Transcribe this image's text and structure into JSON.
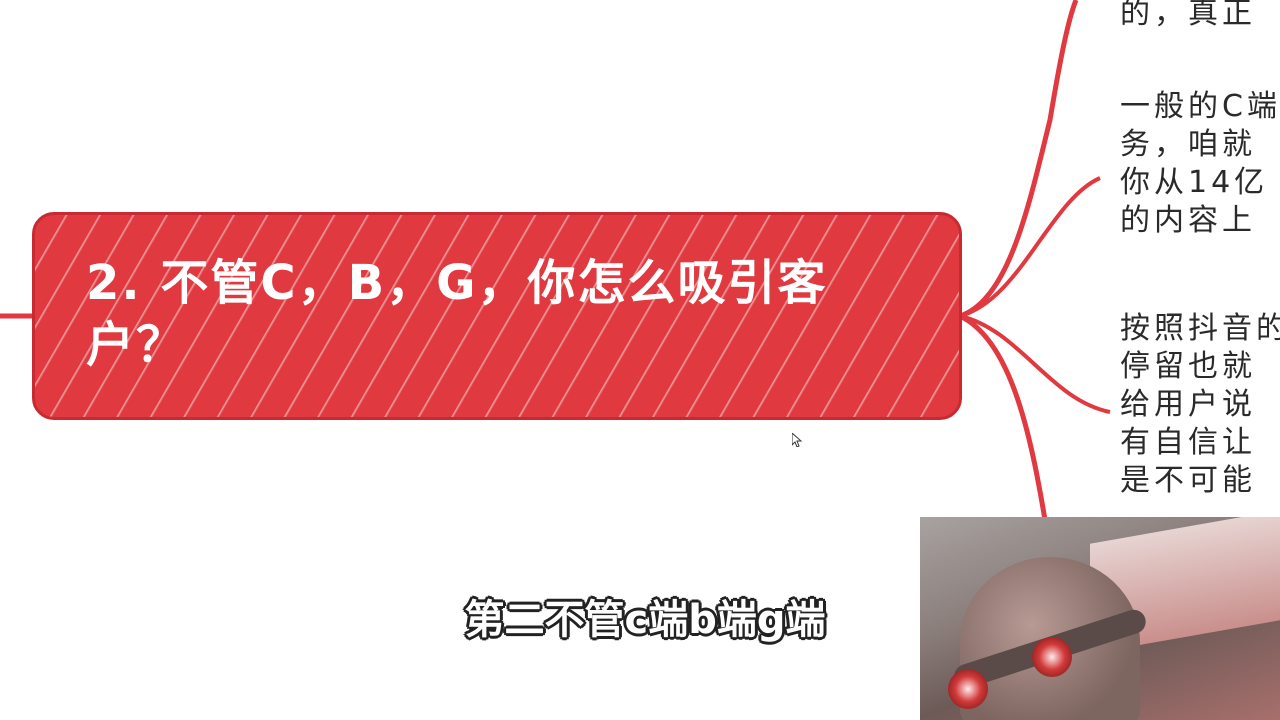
{
  "topic": {
    "title": "2. 不管C，B，G，你怎么吸引客户？"
  },
  "notes": [
    {
      "lines": [
        "的，真正"
      ]
    },
    {
      "lines": [
        "一般的C端",
        "务，咱就",
        "你从14亿",
        "的内容上"
      ]
    },
    {
      "lines": [
        "按照抖音的",
        "停留也就",
        "给用户说",
        "有自信让",
        "是不可能"
      ]
    }
  ],
  "subtitle": {
    "text": "第二不管c端b端g端"
  },
  "colors": {
    "topic_fill": "#e0393f",
    "branch": "#e0393f",
    "note_text": "#2a2a2a"
  }
}
